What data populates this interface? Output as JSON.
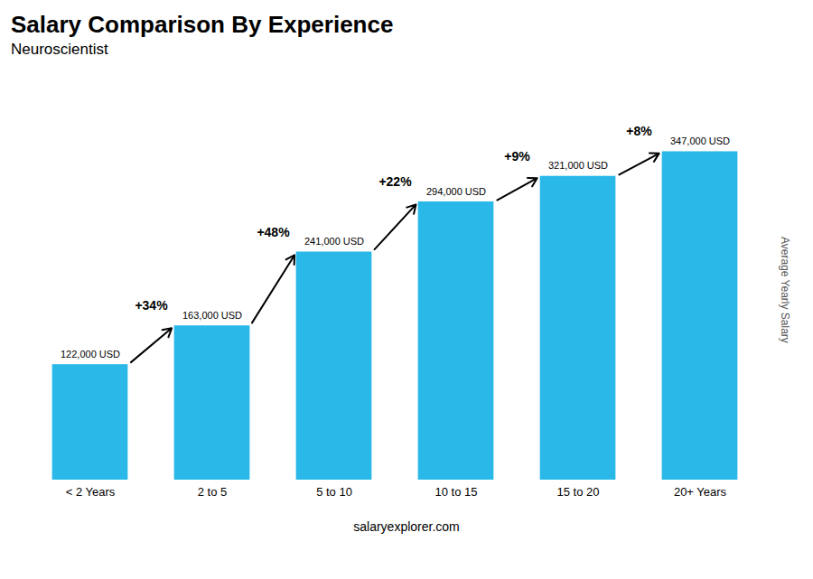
{
  "chart_data": {
    "type": "bar",
    "title": "Salary Comparison By Experience",
    "subtitle": "Neuroscientist",
    "ylabel": "Average Yearly Salary",
    "categories": [
      "< 2 Years",
      "2 to 5",
      "5 to 10",
      "10 to 15",
      "15 to 20",
      "20+ Years"
    ],
    "values": [
      122000,
      163000,
      241000,
      294000,
      321000,
      347000
    ],
    "value_labels": [
      "122,000 USD",
      "163,000 USD",
      "241,000 USD",
      "294,000 USD",
      "321,000 USD",
      "347,000 USD"
    ],
    "data_labels": true,
    "color": "#29b8e8",
    "ylim": [
      0,
      420000
    ],
    "tick_labels": "x",
    "grid": false,
    "annotations": [
      "+34%",
      "+48%",
      "+22%",
      "+9%",
      "+8%"
    ],
    "caption": "salaryexplorer.com"
  }
}
